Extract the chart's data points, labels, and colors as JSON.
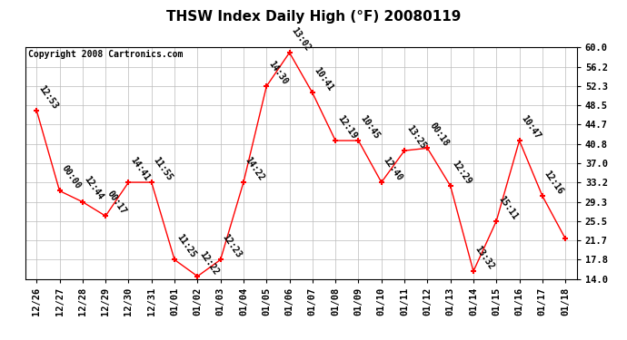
{
  "title": "THSW Index Daily High (°F) 20080119",
  "copyright": "Copyright 2008 Cartronics.com",
  "x_labels": [
    "12/26",
    "12/27",
    "12/28",
    "12/29",
    "12/30",
    "12/31",
    "01/01",
    "01/02",
    "01/03",
    "01/04",
    "01/05",
    "01/06",
    "01/07",
    "01/08",
    "01/09",
    "01/10",
    "01/11",
    "01/12",
    "01/13",
    "01/14",
    "01/15",
    "01/16",
    "01/17",
    "01/18"
  ],
  "y_values": [
    47.5,
    31.5,
    29.3,
    26.5,
    33.2,
    33.2,
    17.8,
    14.5,
    17.8,
    33.2,
    52.3,
    59.0,
    51.0,
    41.5,
    41.5,
    33.2,
    39.5,
    40.0,
    32.5,
    15.5,
    25.5,
    41.5,
    30.5,
    22.0
  ],
  "time_labels": [
    "12:53",
    "00:00",
    "12:44",
    "00:17",
    "14:41",
    "11:55",
    "11:25",
    "12:22",
    "12:23",
    "14:22",
    "14:30",
    "13:02",
    "10:41",
    "12:19",
    "10:45",
    "12:40",
    "13:25",
    "00:18",
    "12:29",
    "13:32",
    "15:11",
    "10:47",
    "12:16",
    ""
  ],
  "y_ticks": [
    14.0,
    17.8,
    21.7,
    25.5,
    29.3,
    33.2,
    37.0,
    40.8,
    44.7,
    48.5,
    52.3,
    56.2,
    60.0
  ],
  "y_min": 14.0,
  "y_max": 60.0,
  "line_color": "red",
  "marker_color": "red",
  "background_color": "white",
  "grid_color": "#bbbbbb",
  "title_fontsize": 11,
  "copyright_fontsize": 7,
  "label_fontsize": 7,
  "tick_fontsize": 7.5
}
